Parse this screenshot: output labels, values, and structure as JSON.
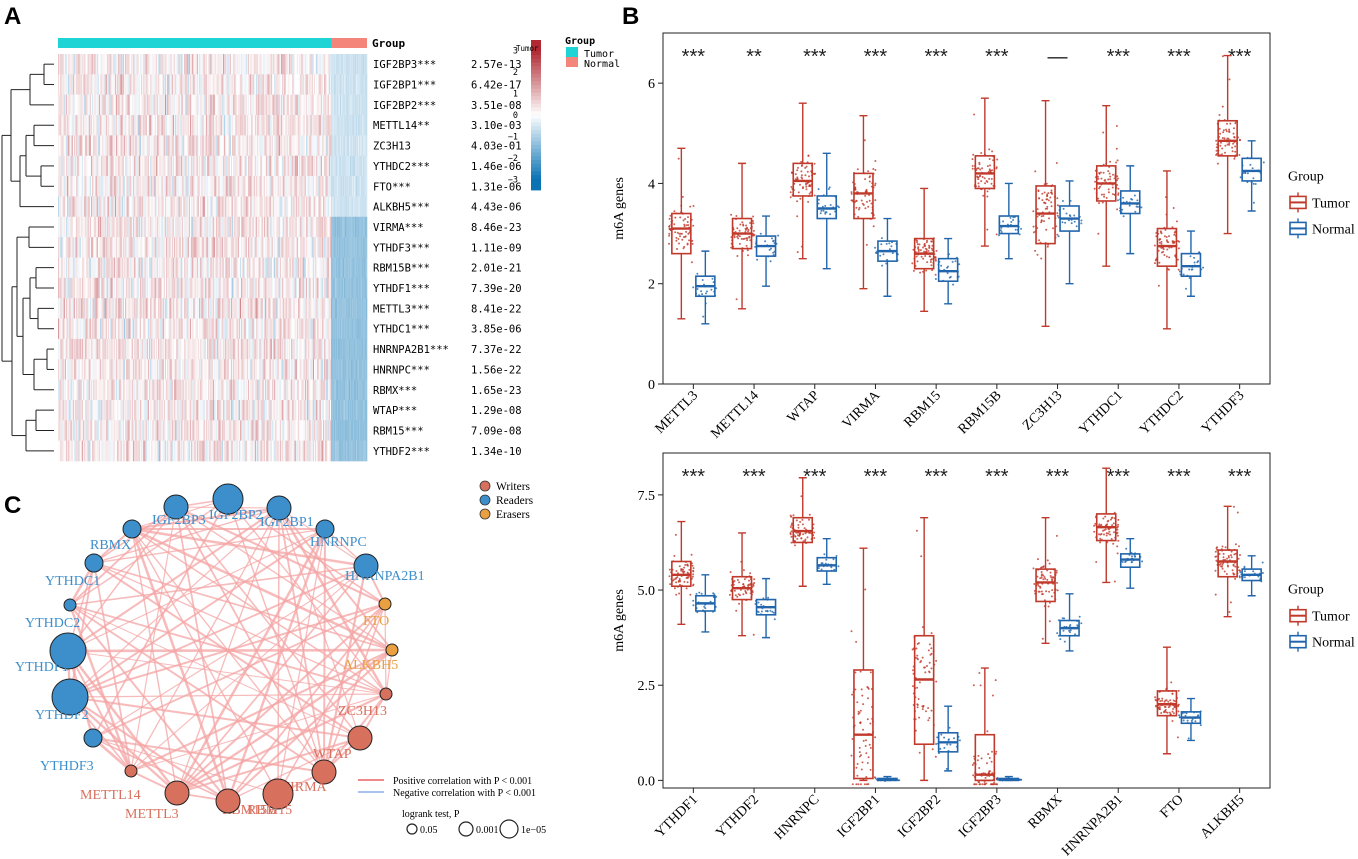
{
  "panels": {
    "a": {
      "label": "A"
    },
    "b": {
      "label": "B"
    },
    "c": {
      "label": "C"
    }
  },
  "heatmap": {
    "group_label": "Group",
    "group_legend_title": "Group",
    "scale_label": "Tumor",
    "color_ticks": [
      "3",
      "2",
      "1",
      "0",
      "−1",
      "−2",
      "−3"
    ],
    "group_legend": [
      {
        "name": "Tumor",
        "color": "#1ed4d4"
      },
      {
        "name": "Normal",
        "color": "#f4857a"
      }
    ],
    "rows": [
      {
        "gene": "IGF2BP3***",
        "p": "2.57e-13"
      },
      {
        "gene": "IGF2BP1***",
        "p": "6.42e-17"
      },
      {
        "gene": "IGF2BP2***",
        "p": "3.51e-08"
      },
      {
        "gene": "METTL14**",
        "p": "3.10e-03"
      },
      {
        "gene": "ZC3H13",
        "p": "4.03e-01"
      },
      {
        "gene": "YTHDC2***",
        "p": "1.46e-06"
      },
      {
        "gene": "FTO***",
        "p": "1.31e-06"
      },
      {
        "gene": "ALKBH5***",
        "p": "4.43e-06"
      },
      {
        "gene": "VIRMA***",
        "p": "8.46e-23"
      },
      {
        "gene": "YTHDF3***",
        "p": "1.11e-09"
      },
      {
        "gene": "RBM15B***",
        "p": "2.01e-21"
      },
      {
        "gene": "YTHDF1***",
        "p": "7.39e-20"
      },
      {
        "gene": "METTL3***",
        "p": "8.41e-22"
      },
      {
        "gene": "YTHDC1***",
        "p": "3.85e-06"
      },
      {
        "gene": "HNRNPA2B1***",
        "p": "7.37e-22"
      },
      {
        "gene": "HNRNPC***",
        "p": "1.56e-22"
      },
      {
        "gene": "RBMX***",
        "p": "1.65e-23"
      },
      {
        "gene": "WTAP***",
        "p": "1.29e-08"
      },
      {
        "gene": "RBM15***",
        "p": "7.09e-08"
      },
      {
        "gene": "YTHDF2***",
        "p": "1.34e-10"
      }
    ]
  },
  "network": {
    "legend_types": [
      {
        "name": "Writers",
        "color": "#d8705e"
      },
      {
        "name": "Readers",
        "color": "#3d8fcc"
      },
      {
        "name": "Erasers",
        "color": "#e8a040"
      }
    ],
    "line_legend": [
      {
        "text": "Positive correlation with P < 0.001",
        "color": "#f08a8a"
      },
      {
        "text": "Negative correlation with P < 0.001",
        "color": "#a8c4ee"
      }
    ],
    "size_legend_title": "logrank test, P",
    "size_legend": [
      "0.05",
      "0.001",
      "1e−05"
    ],
    "nodes": [
      {
        "name": "IGF2BP3",
        "type": "reader",
        "sig": 2
      },
      {
        "name": "IGF2BP2",
        "type": "reader",
        "sig": 3
      },
      {
        "name": "IGF2BP1",
        "type": "reader",
        "sig": 2
      },
      {
        "name": "HNRNPC",
        "type": "reader",
        "sig": 1
      },
      {
        "name": "HNRNPA2B1",
        "type": "reader",
        "sig": 2
      },
      {
        "name": "FTO",
        "type": "eraser",
        "sig": 0
      },
      {
        "name": "ALKBH5",
        "type": "eraser",
        "sig": 0
      },
      {
        "name": "ZC3H13",
        "type": "writer",
        "sig": 0
      },
      {
        "name": "WTAP",
        "type": "writer",
        "sig": 2
      },
      {
        "name": "VIRMA",
        "type": "writer",
        "sig": 2
      },
      {
        "name": "RBM15B",
        "type": "writer",
        "sig": 3
      },
      {
        "name": "RBM15",
        "type": "writer",
        "sig": 2
      },
      {
        "name": "METTL3",
        "type": "writer",
        "sig": 2
      },
      {
        "name": "METTL14",
        "type": "writer",
        "sig": 0
      },
      {
        "name": "YTHDF3",
        "type": "reader",
        "sig": 1
      },
      {
        "name": "YTHDF2",
        "type": "reader",
        "sig": 4
      },
      {
        "name": "YTHDF1",
        "type": "reader",
        "sig": 4
      },
      {
        "name": "YTHDC2",
        "type": "reader",
        "sig": 0
      },
      {
        "name": "YTHDC1",
        "type": "reader",
        "sig": 1
      },
      {
        "name": "RBMX",
        "type": "reader",
        "sig": 1
      }
    ]
  },
  "chart_data": [
    {
      "type": "box",
      "title": "",
      "xlabel": "",
      "ylabel": "m6A genes",
      "ylim": [
        0,
        7
      ],
      "yticks": [
        "0",
        "2",
        "4",
        "6"
      ],
      "legend_title": "Group",
      "legend": [
        {
          "name": "Tumor",
          "color": "#c0392b"
        },
        {
          "name": "Normal",
          "color": "#2166ac"
        }
      ],
      "categories": [
        "METTL3",
        "METTL14",
        "WTAP",
        "VIRMA",
        "RBM15",
        "RBM15B",
        "ZC3H13",
        "YTHDC1",
        "YTHDC2",
        "YTHDF3"
      ],
      "significance": [
        "***",
        "**",
        "***",
        "***",
        "***",
        "***",
        "—",
        "***",
        "***",
        "***"
      ],
      "series": [
        {
          "name": "Tumor",
          "stats": [
            [
              1.3,
              2.6,
              3.1,
              3.4,
              4.7
            ],
            [
              1.5,
              2.7,
              3.0,
              3.3,
              4.4
            ],
            [
              2.5,
              3.75,
              4.05,
              4.4,
              5.6
            ],
            [
              1.9,
              3.3,
              3.8,
              4.2,
              5.35
            ],
            [
              1.45,
              2.3,
              2.6,
              2.9,
              3.9
            ],
            [
              2.75,
              3.9,
              4.2,
              4.55,
              5.7
            ],
            [
              1.15,
              2.8,
              3.4,
              3.95,
              5.65
            ],
            [
              2.35,
              3.65,
              4.0,
              4.35,
              5.55
            ],
            [
              1.1,
              2.35,
              2.75,
              3.1,
              4.25
            ],
            [
              3.0,
              4.55,
              4.85,
              5.25,
              6.55
            ]
          ]
        },
        {
          "name": "Normal",
          "stats": [
            [
              1.2,
              1.75,
              1.95,
              2.15,
              2.65
            ],
            [
              1.95,
              2.55,
              2.75,
              2.95,
              3.35
            ],
            [
              2.3,
              3.3,
              3.5,
              3.75,
              4.6
            ],
            [
              1.75,
              2.45,
              2.65,
              2.85,
              3.3
            ],
            [
              1.6,
              2.05,
              2.25,
              2.5,
              2.9
            ],
            [
              2.5,
              3.0,
              3.15,
              3.35,
              4.0
            ],
            [
              2.0,
              3.05,
              3.3,
              3.55,
              4.05
            ],
            [
              2.6,
              3.4,
              3.6,
              3.85,
              4.35
            ],
            [
              1.75,
              2.15,
              2.35,
              2.6,
              3.05
            ],
            [
              3.45,
              4.05,
              4.25,
              4.5,
              4.85
            ]
          ]
        }
      ]
    },
    {
      "type": "box",
      "title": "",
      "xlabel": "",
      "ylabel": "m6A genes",
      "ylim": [
        -0.2,
        8.6
      ],
      "yticks": [
        "0.0",
        "2.5",
        "5.0",
        "7.5"
      ],
      "legend_title": "Group",
      "legend": [
        {
          "name": "Tumor",
          "color": "#c0392b"
        },
        {
          "name": "Normal",
          "color": "#2166ac"
        }
      ],
      "categories": [
        "YTHDF1",
        "YTHDF2",
        "HNRNPC",
        "IGF2BP1",
        "IGF2BP2",
        "IGF2BP3",
        "RBMX",
        "HNRNPA2B1",
        "FTO",
        "ALKBH5"
      ],
      "significance": [
        "***",
        "***",
        "***",
        "***",
        "***",
        "***",
        "***",
        "***",
        "***",
        "***"
      ],
      "series": [
        {
          "name": "Tumor",
          "stats": [
            [
              4.1,
              5.1,
              5.4,
              5.75,
              6.8
            ],
            [
              3.8,
              4.75,
              5.05,
              5.35,
              6.5
            ],
            [
              5.1,
              6.25,
              6.55,
              6.9,
              7.95
            ],
            [
              0.0,
              0.05,
              1.2,
              2.9,
              6.1
            ],
            [
              0.0,
              0.95,
              2.65,
              3.8,
              6.9
            ],
            [
              0.0,
              0.0,
              0.15,
              1.2,
              2.95
            ],
            [
              3.6,
              4.7,
              5.2,
              5.55,
              6.9
            ],
            [
              5.2,
              6.3,
              6.65,
              7.0,
              8.2
            ],
            [
              0.7,
              1.7,
              2.0,
              2.35,
              3.5
            ],
            [
              4.3,
              5.35,
              5.75,
              6.05,
              7.2
            ]
          ]
        },
        {
          "name": "Normal",
          "stats": [
            [
              3.9,
              4.45,
              4.65,
              4.85,
              5.4
            ],
            [
              3.75,
              4.35,
              4.55,
              4.75,
              5.3
            ],
            [
              5.15,
              5.5,
              5.65,
              5.85,
              6.35
            ],
            [
              0.0,
              0.0,
              0.02,
              0.05,
              0.1
            ],
            [
              0.25,
              0.75,
              1.0,
              1.25,
              1.95
            ],
            [
              0.0,
              0.0,
              0.02,
              0.05,
              0.1
            ],
            [
              3.4,
              3.8,
              4.0,
              4.2,
              4.9
            ],
            [
              5.05,
              5.6,
              5.8,
              5.95,
              6.35
            ],
            [
              1.05,
              1.5,
              1.65,
              1.8,
              2.15
            ],
            [
              4.85,
              5.25,
              5.4,
              5.55,
              5.9
            ]
          ]
        }
      ]
    }
  ]
}
